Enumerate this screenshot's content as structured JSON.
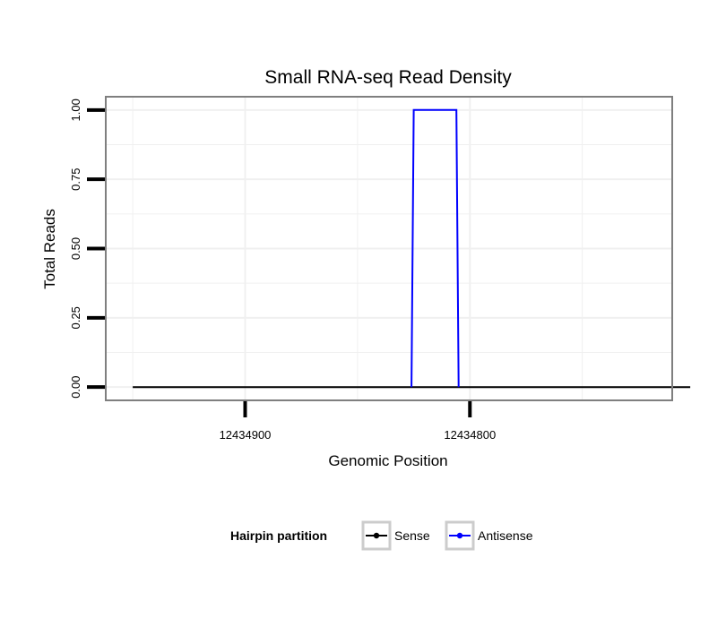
{
  "chart_data": {
    "type": "line",
    "title": "Small RNA-seq Read Density",
    "xlabel": "Genomic Position",
    "ylabel": "Total Reads",
    "x_reversed": true,
    "xlim": [
      12434962,
      12434710
    ],
    "ylim": [
      -0.048,
      1.048
    ],
    "x_ticks": [
      12434900,
      12434800
    ],
    "x_tick_labels": [
      "12434900",
      "12434800"
    ],
    "y_ticks": [
      0,
      0.25,
      0.5,
      0.75,
      1
    ],
    "y_tick_labels": [
      "0.00",
      "0.25",
      "0.50",
      "0.75",
      "1.00"
    ],
    "grid": true,
    "legend": {
      "title": "Hairpin partition",
      "position": "bottom",
      "entries": [
        "Sense",
        "Antisense"
      ]
    },
    "series": [
      {
        "name": "Sense",
        "color": "#000000",
        "x": [
          12434950,
          12434702
        ],
        "values": [
          0,
          0
        ]
      },
      {
        "name": "Antisense",
        "color": "#0000ff",
        "x": [
          12434826,
          12434825,
          12434806,
          12434805
        ],
        "values": [
          0,
          1,
          1,
          0
        ]
      }
    ]
  }
}
